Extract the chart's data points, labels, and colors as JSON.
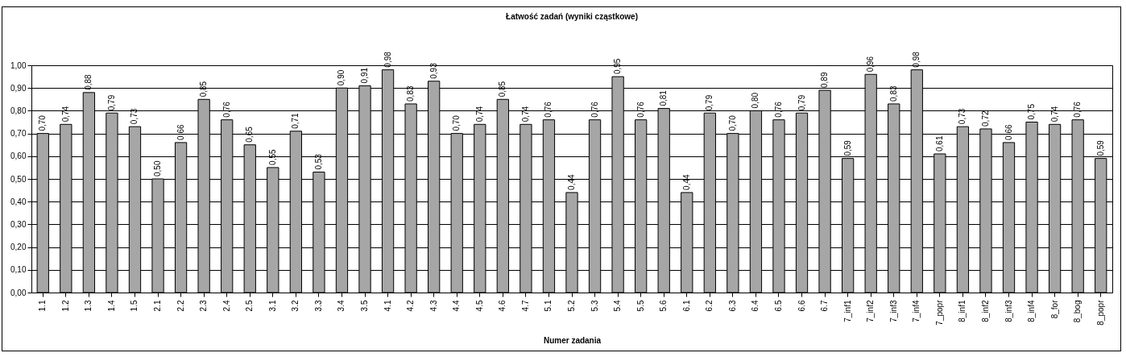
{
  "chart_data": {
    "type": "bar",
    "title": "Łatwość zadań (wyniki cząstkowe)",
    "xlabel": "Numer zadania",
    "categories": [
      "1.1",
      "1.2",
      "1.3",
      "1.4",
      "1.5",
      "2.1",
      "2.2",
      "2.3",
      "2.4",
      "2.5",
      "3.1",
      "3.2",
      "3.3",
      "3.4",
      "3.5",
      "4.1",
      "4.2",
      "4.3",
      "4.4",
      "4.5",
      "4.6",
      "4.7",
      "5.1",
      "5.2",
      "5.3",
      "5.4",
      "5.5",
      "5.6",
      "6.1",
      "6.2",
      "6.3",
      "6.4",
      "6.5",
      "6.6",
      "6.7",
      "7_inf1",
      "7_inf2",
      "7_inf3",
      "7_inf4",
      "7_popr",
      "8_inf1",
      "8_inf2",
      "8_inf3",
      "8_inf4",
      "8_for",
      "8_bog",
      "8_popr"
    ],
    "values": [
      0.7,
      0.74,
      0.88,
      0.79,
      0.73,
      0.5,
      0.66,
      0.85,
      0.76,
      0.65,
      0.55,
      0.71,
      0.53,
      0.9,
      0.91,
      0.98,
      0.83,
      0.93,
      0.7,
      0.74,
      0.85,
      0.74,
      0.76,
      0.44,
      0.76,
      0.95,
      0.76,
      0.81,
      0.44,
      0.79,
      0.7,
      0.8,
      0.76,
      0.79,
      0.89,
      0.59,
      0.96,
      0.83,
      0.98,
      0.61,
      0.73,
      0.72,
      0.66,
      0.75,
      0.74,
      0.76,
      0.59
    ],
    "value_labels": [
      "0,70",
      "0,74",
      "0,88",
      "0,79",
      "0,73",
      "0,50",
      "0,66",
      "0,85",
      "0,76",
      "0,65",
      "0,55",
      "0,71",
      "0,53",
      "0,90",
      "0,91",
      "0,98",
      "0,83",
      "0,93",
      "0,70",
      "0,74",
      "0,85",
      "0,74",
      "0,76",
      "0,44",
      "0,76",
      "0,95",
      "0,76",
      "0,81",
      "0,44",
      "0,79",
      "0,70",
      "0,80",
      "0,76",
      "0,79",
      "0,89",
      "0,59",
      "0,96",
      "0,83",
      "0,98",
      "0,61",
      "0,73",
      "0,72",
      "0,66",
      "0,75",
      "0,74",
      "0,76",
      "0,59"
    ],
    "color": "#a6a6a6",
    "ylim": [
      0,
      1
    ],
    "yticks": [
      {
        "value": 0,
        "label": "0,00"
      },
      {
        "value": 0.1,
        "label": "0,10"
      },
      {
        "value": 0.2,
        "label": "0,20"
      },
      {
        "value": 0.3,
        "label": "0,30"
      },
      {
        "value": 0.4,
        "label": "0,40"
      },
      {
        "value": 0.5,
        "label": "0,50"
      },
      {
        "value": 0.6,
        "label": "0,60"
      },
      {
        "value": 0.7,
        "label": "0,70"
      },
      {
        "value": 0.8,
        "label": "0,80"
      },
      {
        "value": 0.9,
        "label": "0,90"
      },
      {
        "value": 1,
        "label": "1,00"
      }
    ],
    "grid": "y"
  }
}
